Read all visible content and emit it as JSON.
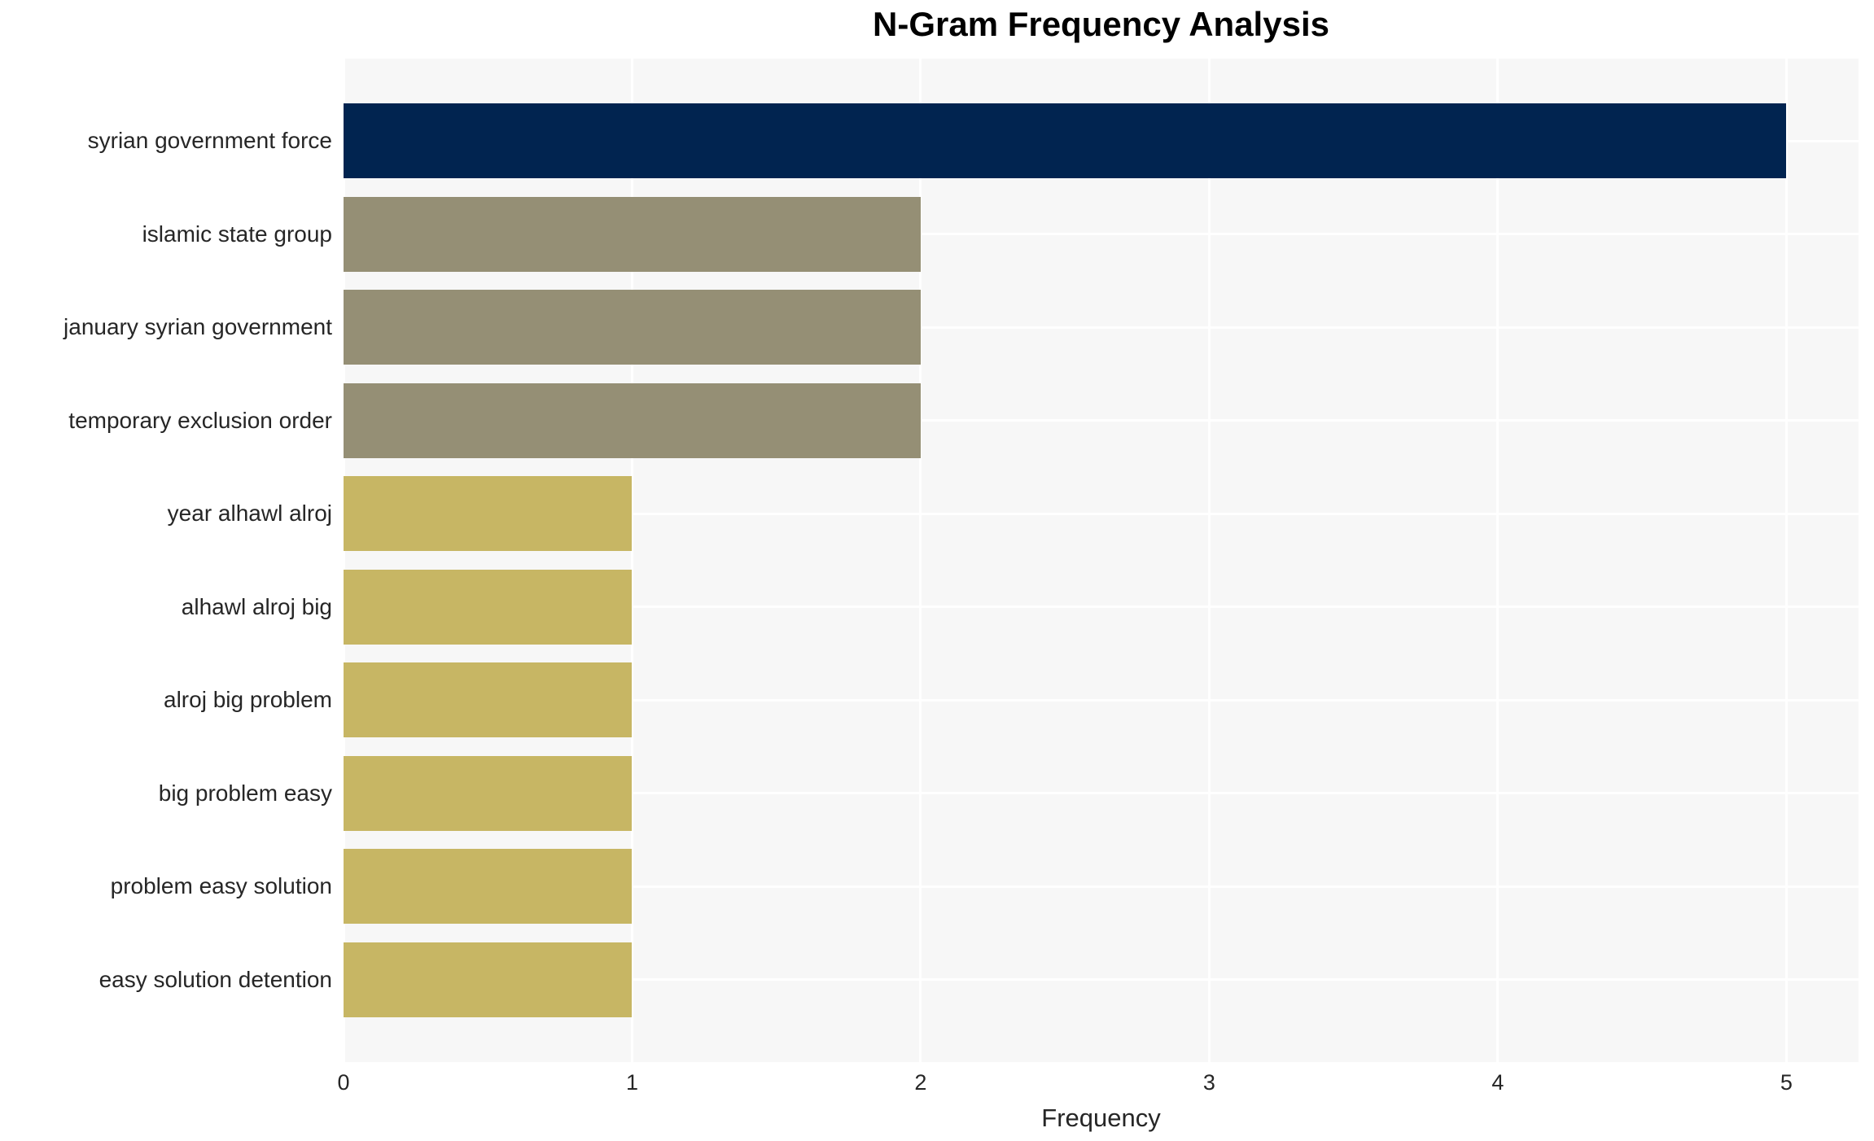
{
  "chart_data": {
    "type": "bar",
    "orientation": "horizontal",
    "title": "N-Gram Frequency Analysis",
    "xlabel": "Frequency",
    "ylabel": "",
    "categories": [
      "syrian government force",
      "islamic state group",
      "january syrian government",
      "temporary exclusion order",
      "year alhawl alroj",
      "alhawl alroj big",
      "alroj big problem",
      "big problem easy",
      "problem easy solution",
      "easy solution detention"
    ],
    "values": [
      5,
      2,
      2,
      2,
      1,
      1,
      1,
      1,
      1,
      1
    ],
    "bar_colors": [
      "#012450",
      "#958f75",
      "#958f75",
      "#958f75",
      "#c7b664",
      "#c7b664",
      "#c7b664",
      "#c7b664",
      "#c7b664",
      "#c7b664"
    ],
    "x_ticks": [
      "0",
      "1",
      "2",
      "3",
      "4",
      "5"
    ],
    "xlim": [
      0,
      5.25
    ],
    "grid": true,
    "legend_position": "none",
    "plot_background": "#f7f7f7",
    "gridline_color": "#ffffff",
    "text_color": "#262626",
    "title_color": "#000000"
  }
}
